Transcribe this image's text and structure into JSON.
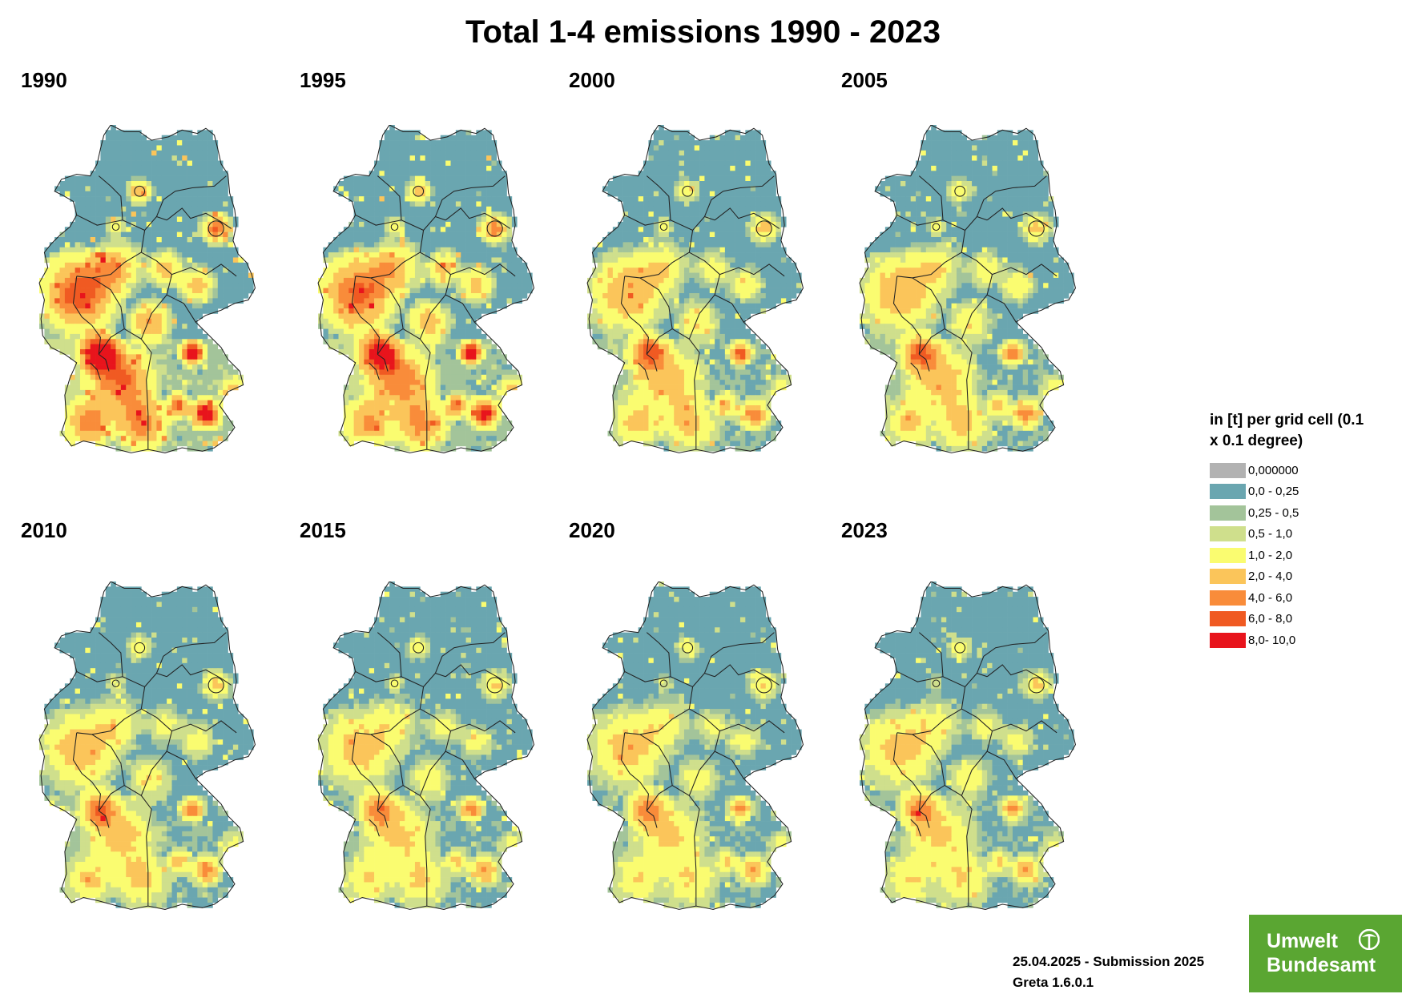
{
  "title": "Total 1-4 emissions 1990 - 2023",
  "panels": [
    {
      "year": "1990",
      "intensity": 1.0
    },
    {
      "year": "1995",
      "intensity": 0.9
    },
    {
      "year": "2000",
      "intensity": 0.62
    },
    {
      "year": "2005",
      "intensity": 0.6
    },
    {
      "year": "2010",
      "intensity": 0.57
    },
    {
      "year": "2015",
      "intensity": 0.52
    },
    {
      "year": "2020",
      "intensity": 0.5
    },
    {
      "year": "2023",
      "intensity": 0.5
    }
  ],
  "legend": {
    "title": "in [t] per grid cell (0.1 x 0.1 degree)",
    "items": [
      {
        "label": "0,000000",
        "color": "#b2b2b2"
      },
      {
        "label": "0,0 - 0,25",
        "color": "#6aa6b0"
      },
      {
        "label": "0,25 - 0,5",
        "color": "#a3c49a"
      },
      {
        "label": "0,5 - 1,0",
        "color": "#cfdf8c"
      },
      {
        "label": "1,0 - 2,0",
        "color": "#fafc70"
      },
      {
        "label": "2,0 - 4,0",
        "color": "#fbc55a"
      },
      {
        "label": "4,0 - 6,0",
        "color": "#f98c3a"
      },
      {
        "label": "6,0 - 8,0",
        "color": "#f05a22"
      },
      {
        "label": "8,0- 10,0",
        "color": "#e8141c"
      }
    ]
  },
  "footer": {
    "line1": "25.04.2025 - Submission 2025",
    "line2": "Greta 1.6.0.1"
  },
  "logo": {
    "line1": "Umwelt",
    "line2": "Bundesamt"
  }
}
